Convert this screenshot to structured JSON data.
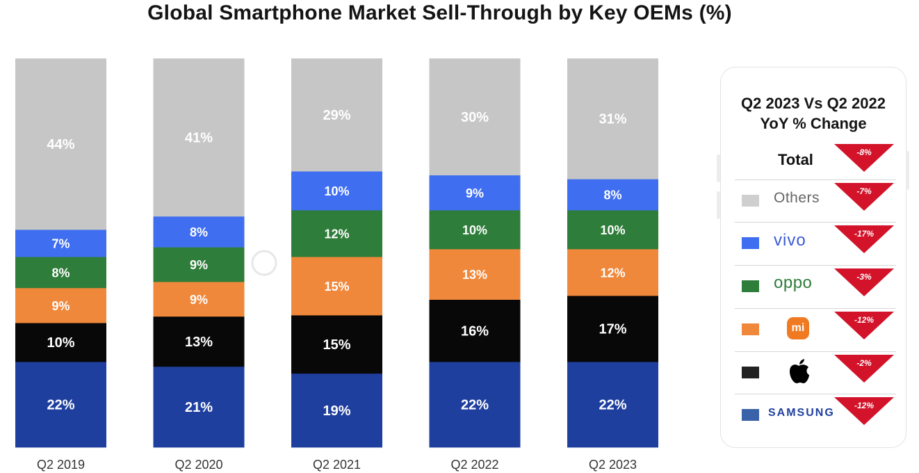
{
  "chart_data": {
    "type": "bar",
    "stacked": true,
    "title": "Global Smartphone Market Sell-Through by Key OEMs (%)",
    "categories": [
      "Q2 2019",
      "Q2 2020",
      "Q2 2021",
      "Q2 2022",
      "Q2 2023"
    ],
    "ylim": [
      0,
      100
    ],
    "grid": false,
    "series": [
      {
        "key": "samsung",
        "color": "#1f3f9e",
        "values": [
          22,
          21,
          19,
          22,
          22
        ],
        "labels": [
          "22%",
          "21%",
          "19%",
          "22%",
          "22%"
        ]
      },
      {
        "key": "apple",
        "color": "#080808",
        "values": [
          10,
          13,
          15,
          16,
          17
        ],
        "labels": [
          "10%",
          "13%",
          "15%",
          "16%",
          "17%"
        ]
      },
      {
        "key": "xiaomi",
        "color": "#f0883b",
        "values": [
          9,
          9,
          15,
          13,
          12
        ],
        "labels": [
          "9%",
          "9%",
          "15%",
          "13%",
          "12%"
        ]
      },
      {
        "key": "oppo",
        "color": "#2f7d3a",
        "values": [
          8,
          9,
          12,
          10,
          10
        ],
        "labels": [
          "8%",
          "9%",
          "12%",
          "10%",
          "10%"
        ]
      },
      {
        "key": "vivo",
        "color": "#3f6ff0",
        "values": [
          7,
          8,
          10,
          9,
          8
        ],
        "labels": [
          "7%",
          "8%",
          "10%",
          "9%",
          "8%"
        ]
      },
      {
        "key": "others",
        "color": "#c6c6c6",
        "values": [
          44,
          41,
          29,
          30,
          31
        ],
        "labels": [
          "44%",
          "41%",
          "29%",
          "30%",
          "31%"
        ]
      }
    ]
  },
  "legend": {
    "title_line1": "Q2 2023 Vs Q2 2022",
    "title_line2": "YoY % Change",
    "total_label": "Total",
    "total_change": "-8%",
    "change_color": "#d2132a",
    "rows": [
      {
        "name": "others",
        "brand_text": "Others",
        "swatch_color": "#cfcfcf",
        "change": "-7%"
      },
      {
        "name": "vivo",
        "brand_text": "vivo",
        "swatch_color": "#3f6ff0",
        "change": "-17%"
      },
      {
        "name": "oppo",
        "brand_text": "oppo",
        "swatch_color": "#2f7d3a",
        "change": "-3%"
      },
      {
        "name": "xiaomi",
        "brand_text": "mi",
        "brand_icon": "xiaomi-logo",
        "swatch_color": "#f0883b",
        "change": "-12%"
      },
      {
        "name": "apple",
        "brand_icon": "apple-logo",
        "swatch_color": "#222222",
        "change": "-2%"
      },
      {
        "name": "samsung",
        "brand_text": "SAMSUNG",
        "swatch_color": "#3a62a8",
        "change": "-12%"
      }
    ]
  }
}
